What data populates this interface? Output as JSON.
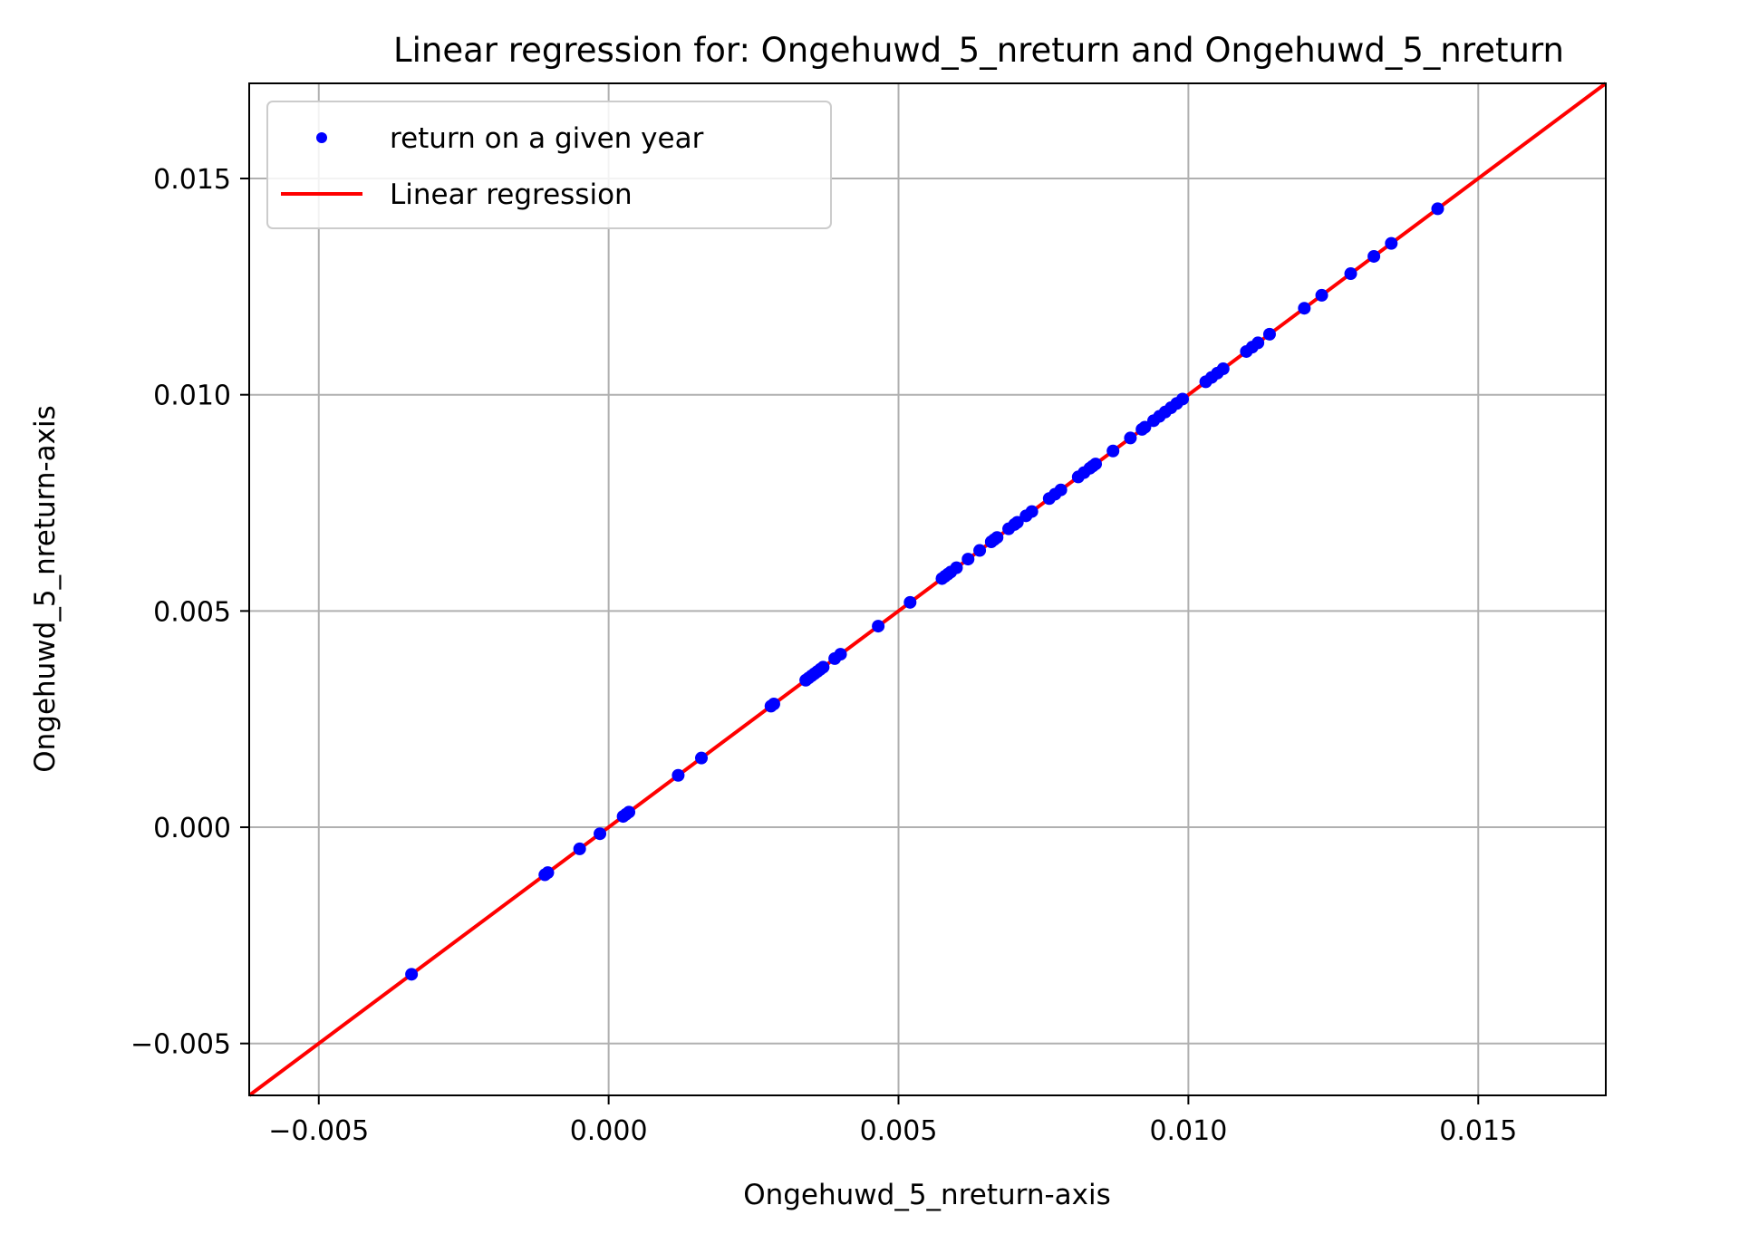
{
  "chart_data": {
    "type": "scatter",
    "title": "Linear regression for: Ongehuwd_5_nreturn and Ongehuwd_5_nreturn",
    "xlabel": "Ongehuwd_5_nreturn-axis",
    "ylabel": "Ongehuwd_5_nreturn-axis",
    "xlim": [
      -0.0062,
      0.0172
    ],
    "ylim": [
      -0.0062,
      0.0172
    ],
    "xticks": [
      -0.005,
      0.0,
      0.005,
      0.01,
      0.015
    ],
    "yticks": [
      -0.005,
      0.0,
      0.005,
      0.01,
      0.015
    ],
    "xtick_labels": [
      "−0.005",
      "0.000",
      "0.005",
      "0.010",
      "0.015"
    ],
    "ytick_labels": [
      "−0.005",
      "0.000",
      "0.005",
      "0.010",
      "0.015"
    ],
    "grid": true,
    "legend": {
      "position": "top-left",
      "entries": [
        "return on a given year",
        "Linear regression"
      ]
    },
    "colors": {
      "scatter": "#0000ff",
      "regression": "#ff0000",
      "grid": "#b0b0b0"
    },
    "series": [
      {
        "name": "return on a given year",
        "type": "scatter",
        "x": [
          -0.0034,
          -0.0011,
          -0.00105,
          -0.0005,
          -0.00015,
          0.00025,
          0.0003,
          0.00035,
          0.0012,
          0.0016,
          0.0028,
          0.00285,
          0.0034,
          0.00345,
          0.0035,
          0.00355,
          0.0036,
          0.00365,
          0.0037,
          0.0039,
          0.004,
          0.00465,
          0.0052,
          0.00575,
          0.0058,
          0.00585,
          0.0059,
          0.006,
          0.0062,
          0.0064,
          0.0066,
          0.00665,
          0.0067,
          0.0069,
          0.007,
          0.00705,
          0.0072,
          0.0073,
          0.0076,
          0.0077,
          0.0078,
          0.0081,
          0.0082,
          0.0083,
          0.00835,
          0.0084,
          0.0087,
          0.009,
          0.0092,
          0.00925,
          0.0094,
          0.0095,
          0.0096,
          0.0097,
          0.0098,
          0.0099,
          0.0103,
          0.0104,
          0.0105,
          0.0106,
          0.011,
          0.0111,
          0.0112,
          0.0114,
          0.012,
          0.0123,
          0.0128,
          0.0132,
          0.0135,
          0.0143
        ],
        "y": [
          -0.0034,
          -0.0011,
          -0.00105,
          -0.0005,
          -0.00015,
          0.00025,
          0.0003,
          0.00035,
          0.0012,
          0.0016,
          0.0028,
          0.00285,
          0.0034,
          0.00345,
          0.0035,
          0.00355,
          0.0036,
          0.00365,
          0.0037,
          0.0039,
          0.004,
          0.00465,
          0.0052,
          0.00575,
          0.0058,
          0.00585,
          0.0059,
          0.006,
          0.0062,
          0.0064,
          0.0066,
          0.00665,
          0.0067,
          0.0069,
          0.007,
          0.00705,
          0.0072,
          0.0073,
          0.0076,
          0.0077,
          0.0078,
          0.0081,
          0.0082,
          0.0083,
          0.00835,
          0.0084,
          0.0087,
          0.009,
          0.0092,
          0.00925,
          0.0094,
          0.0095,
          0.0096,
          0.0097,
          0.0098,
          0.0099,
          0.0103,
          0.0104,
          0.0105,
          0.0106,
          0.011,
          0.0111,
          0.0112,
          0.0114,
          0.012,
          0.0123,
          0.0128,
          0.0132,
          0.0135,
          0.0143
        ]
      },
      {
        "name": "Linear regression",
        "type": "line",
        "x": [
          -0.0062,
          0.0172
        ],
        "y": [
          -0.0062,
          0.0172
        ]
      }
    ]
  }
}
